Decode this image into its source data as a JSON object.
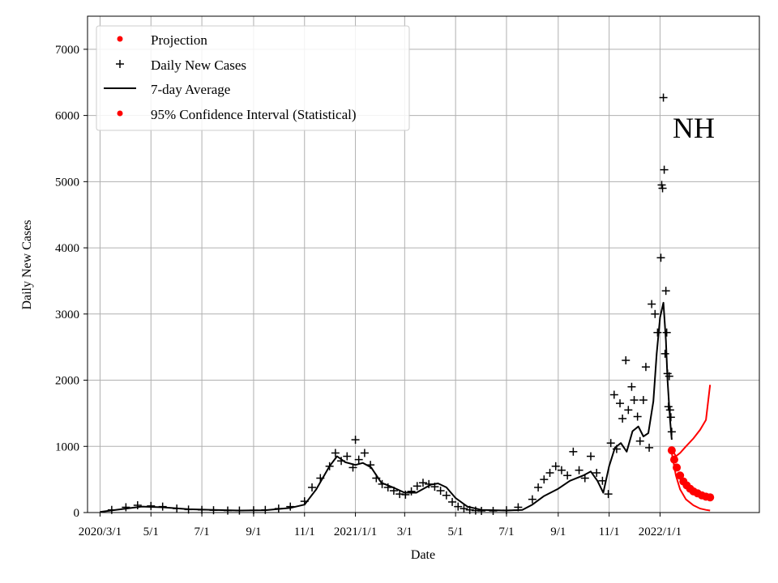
{
  "chart_data": {
    "type": "line",
    "xlabel": "Date",
    "ylabel": "Daily New Cases",
    "annotation": "NH",
    "xlim": [
      "2020-02-15",
      "2022-04-30"
    ],
    "ylim": [
      0,
      7500
    ],
    "x_ticks": [
      {
        "date": "2020-03-01",
        "label": "2020/3/1"
      },
      {
        "date": "2020-05-01",
        "label": "5/1"
      },
      {
        "date": "2020-07-01",
        "label": "7/1"
      },
      {
        "date": "2020-09-01",
        "label": "9/1"
      },
      {
        "date": "2020-11-01",
        "label": "11/1"
      },
      {
        "date": "2021-01-01",
        "label": "2021/1/1"
      },
      {
        "date": "2021-03-01",
        "label": "3/1"
      },
      {
        "date": "2021-05-01",
        "label": "5/1"
      },
      {
        "date": "2021-07-01",
        "label": "7/1"
      },
      {
        "date": "2021-09-01",
        "label": "9/1"
      },
      {
        "date": "2021-11-01",
        "label": "11/1"
      },
      {
        "date": "2022-01-01",
        "label": "2022/1/1"
      }
    ],
    "y_ticks": [
      0,
      1000,
      2000,
      3000,
      4000,
      5000,
      6000,
      7000
    ],
    "grid": true,
    "legend_position": "top-left",
    "series": [
      {
        "name": "Projection",
        "kind": "markers",
        "marker": "dot",
        "color": "#ff0000",
        "x": [
          "2022-01-15",
          "2022-01-18",
          "2022-01-21",
          "2022-01-25",
          "2022-01-29",
          "2022-02-02",
          "2022-02-06",
          "2022-02-10",
          "2022-02-15",
          "2022-02-20",
          "2022-02-25",
          "2022-03-02"
        ],
        "y": [
          940,
          800,
          680,
          560,
          470,
          410,
          360,
          320,
          290,
          260,
          240,
          230
        ]
      },
      {
        "name": "Daily New Cases",
        "kind": "markers",
        "marker": "plus",
        "color": "#000000",
        "x": [
          "2020-03-15",
          "2020-04-01",
          "2020-04-15",
          "2020-05-01",
          "2020-05-15",
          "2020-06-01",
          "2020-06-15",
          "2020-07-01",
          "2020-07-15",
          "2020-08-01",
          "2020-08-15",
          "2020-09-01",
          "2020-09-15",
          "2020-10-01",
          "2020-10-15",
          "2020-11-01",
          "2020-11-10",
          "2020-11-20",
          "2020-12-01",
          "2020-12-08",
          "2020-12-15",
          "2020-12-22",
          "2020-12-29",
          "2021-01-01",
          "2021-01-05",
          "2021-01-12",
          "2021-01-19",
          "2021-01-26",
          "2021-02-02",
          "2021-02-09",
          "2021-02-16",
          "2021-02-23",
          "2021-03-02",
          "2021-03-09",
          "2021-03-16",
          "2021-03-23",
          "2021-03-30",
          "2021-04-06",
          "2021-04-13",
          "2021-04-20",
          "2021-04-27",
          "2021-05-04",
          "2021-05-11",
          "2021-05-18",
          "2021-05-25",
          "2021-06-01",
          "2021-06-15",
          "2021-07-01",
          "2021-07-15",
          "2021-08-01",
          "2021-08-08",
          "2021-08-15",
          "2021-08-22",
          "2021-08-29",
          "2021-09-05",
          "2021-09-12",
          "2021-09-19",
          "2021-09-26",
          "2021-10-03",
          "2021-10-10",
          "2021-10-17",
          "2021-10-24",
          "2021-10-31",
          "2021-11-03",
          "2021-11-07",
          "2021-11-10",
          "2021-11-14",
          "2021-11-17",
          "2021-11-21",
          "2021-11-24",
          "2021-11-28",
          "2021-12-01",
          "2021-12-05",
          "2021-12-08",
          "2021-12-12",
          "2021-12-15",
          "2021-12-19",
          "2021-12-22",
          "2021-12-26",
          "2021-12-29",
          "2022-01-02",
          "2022-01-03",
          "2022-01-04",
          "2022-01-05",
          "2022-01-06",
          "2022-01-07",
          "2022-01-08",
          "2022-01-09",
          "2022-01-10",
          "2022-01-11",
          "2022-01-12",
          "2022-01-13",
          "2022-01-14",
          "2022-01-15"
        ],
        "y": [
          40,
          80,
          110,
          100,
          90,
          60,
          45,
          40,
          35,
          30,
          30,
          35,
          40,
          60,
          90,
          170,
          380,
          520,
          700,
          900,
          780,
          850,
          680,
          1100,
          800,
          900,
          720,
          520,
          430,
          380,
          330,
          280,
          270,
          320,
          400,
          450,
          430,
          390,
          330,
          260,
          160,
          90,
          60,
          40,
          30,
          25,
          25,
          35,
          80,
          200,
          380,
          500,
          600,
          700,
          640,
          560,
          920,
          640,
          520,
          850,
          600,
          480,
          280,
          1050,
          1780,
          960,
          1650,
          1420,
          2300,
          1550,
          1900,
          1700,
          1450,
          1080,
          1700,
          2200,
          980,
          3150,
          3000,
          2720,
          3850,
          4950,
          4900,
          6270,
          5180,
          2400,
          3350,
          2720,
          2100,
          1600,
          2060,
          1550,
          1440,
          1220
        ]
      },
      {
        "name": "7-day Average",
        "kind": "line",
        "color": "#000000",
        "x": [
          "2020-03-01",
          "2020-04-01",
          "2020-04-20",
          "2020-05-15",
          "2020-06-15",
          "2020-07-15",
          "2020-08-15",
          "2020-09-15",
          "2020-10-15",
          "2020-11-01",
          "2020-11-15",
          "2020-12-01",
          "2020-12-10",
          "2020-12-20",
          "2021-01-01",
          "2021-01-10",
          "2021-01-20",
          "2021-02-01",
          "2021-02-15",
          "2021-03-01",
          "2021-03-15",
          "2021-04-01",
          "2021-04-10",
          "2021-04-20",
          "2021-05-01",
          "2021-05-15",
          "2021-06-01",
          "2021-07-01",
          "2021-07-20",
          "2021-08-01",
          "2021-08-15",
          "2021-09-01",
          "2021-09-15",
          "2021-10-01",
          "2021-10-10",
          "2021-10-18",
          "2021-10-25",
          "2021-11-01",
          "2021-11-08",
          "2021-11-15",
          "2021-11-22",
          "2021-11-29",
          "2021-12-06",
          "2021-12-12",
          "2021-12-18",
          "2021-12-24",
          "2021-12-28",
          "2022-01-01",
          "2022-01-05",
          "2022-01-08",
          "2022-01-10",
          "2022-01-13",
          "2022-01-15"
        ],
        "y": [
          10,
          60,
          90,
          80,
          50,
          40,
          30,
          35,
          70,
          120,
          350,
          700,
          850,
          760,
          720,
          750,
          680,
          450,
          380,
          300,
          300,
          420,
          440,
          380,
          220,
          90,
          40,
          30,
          40,
          120,
          250,
          360,
          480,
          560,
          620,
          480,
          300,
          700,
          980,
          1050,
          920,
          1230,
          1300,
          1150,
          1200,
          1680,
          2400,
          2950,
          3170,
          2600,
          2000,
          1400,
          1100
        ]
      },
      {
        "name": "95% Confidence Interval (Statistical)",
        "kind": "band",
        "color": "#ff0000",
        "x": [
          "2022-01-15",
          "2022-01-20",
          "2022-01-25",
          "2022-02-01",
          "2022-02-10",
          "2022-02-18",
          "2022-02-25",
          "2022-03-02"
        ],
        "upper": [
          960,
          850,
          900,
          1000,
          1120,
          1250,
          1400,
          1930
        ],
        "lower": [
          900,
          560,
          350,
          200,
          110,
          60,
          40,
          30
        ]
      }
    ]
  }
}
